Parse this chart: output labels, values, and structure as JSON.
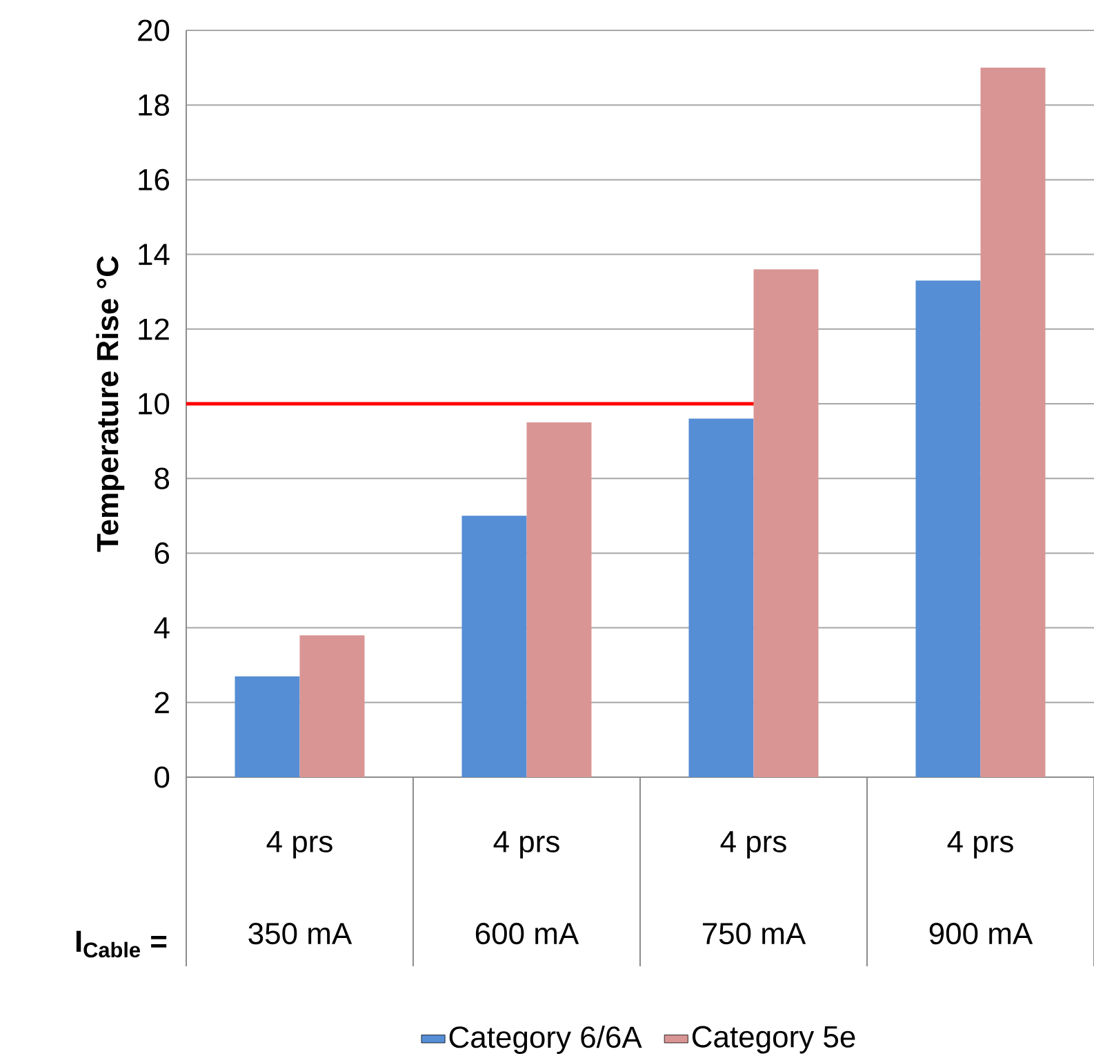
{
  "chart_data": {
    "type": "bar",
    "ylabel": "Temperature Rise °C",
    "categories": [
      "350 mA",
      "600 mA",
      "750 mA",
      "900 mA"
    ],
    "series": [
      {
        "name": "Category 6/6A",
        "color": "#558ed5",
        "values": [
          2.7,
          7.0,
          9.6,
          13.3
        ]
      },
      {
        "name": "Category 5e",
        "color": "#d99594",
        "values": [
          3.8,
          9.5,
          13.6,
          19.0
        ]
      }
    ],
    "ylim": [
      0,
      20
    ],
    "yticks": [
      0,
      2,
      4,
      6,
      8,
      10,
      12,
      14,
      16,
      18,
      20
    ],
    "grid": "y",
    "legend": "bottom",
    "ref_lines": [
      {
        "axis": "y",
        "value": 10,
        "color": "#ff0000"
      }
    ],
    "annotations": [
      "I$_{Cable}$ =",
      "4 prs",
      "4 prs",
      "4 prs",
      "4 prs"
    ]
  }
}
